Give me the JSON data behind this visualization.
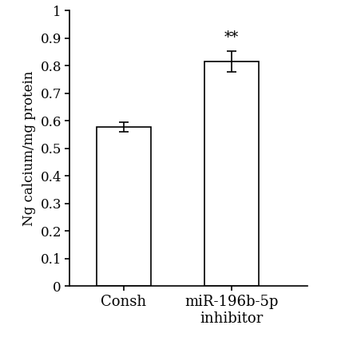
{
  "categories": [
    "Consh",
    "miR-196b-5p\ninhibitor"
  ],
  "values": [
    0.578,
    0.815
  ],
  "errors": [
    0.018,
    0.038
  ],
  "bar_colors": [
    "#ffffff",
    "#ffffff"
  ],
  "bar_edgecolors": [
    "#000000",
    "#000000"
  ],
  "ylabel": "Ng calcium/mg protein",
  "ylim": [
    0,
    1.0
  ],
  "yticks": [
    0,
    0.1,
    0.2,
    0.3,
    0.4,
    0.5,
    0.6,
    0.7,
    0.8,
    0.9,
    1
  ],
  "significance": [
    "",
    "**"
  ],
  "sig_fontsize": 13,
  "bar_width": 0.5,
  "ylabel_fontsize": 12,
  "tick_fontsize": 12,
  "xtick_fontsize": 13,
  "x_positions": [
    0.5,
    1.5
  ]
}
